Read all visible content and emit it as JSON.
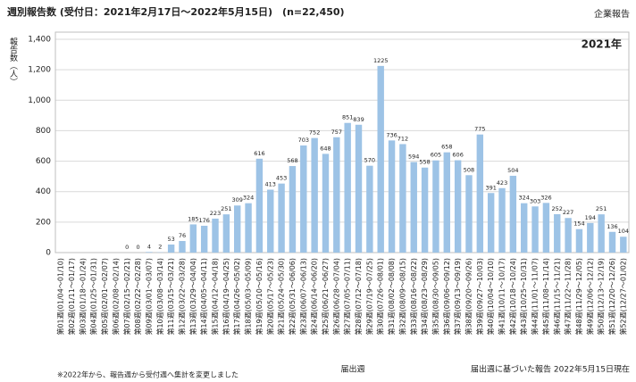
{
  "chart_data": {
    "type": "bar",
    "title": "週別報告数 (受付日：2021年2月17日～2022年5月15日)　(n=22,450)",
    "corner_label": "企業報告",
    "inset_label": "2021年",
    "y_label": "報告数（人）",
    "x_label": "届出週",
    "footnote": "※2022年から、報告週から受付週へ集計を変更しました",
    "source_note": "届出週に基づいた報告 2022年5月15日現在",
    "categories": [
      "第01週(01/04～01/10)",
      "第02週(01/11～01/17)",
      "第03週(01/18～01/24)",
      "第04週(01/25～01/31)",
      "第05週(02/01～02/07)",
      "第06週(02/08～02/14)",
      "第07週(02/15～02/21)",
      "第08週(02/22～02/28)",
      "第09週(03/01～03/07)",
      "第10週(03/08～03/14)",
      "第11週(03/15～03/21)",
      "第12週(03/22～03/28)",
      "第13週(03/29～04/04)",
      "第14週(04/05～04/11)",
      "第15週(04/12～04/18)",
      "第16週(04/19～04/25)",
      "第17週(04/26～05/02)",
      "第18週(05/03～05/09)",
      "第19週(05/10～05/16)",
      "第20週(05/17～05/23)",
      "第21週(05/24～05/30)",
      "第22週(05/31～06/06)",
      "第23週(06/07～06/13)",
      "第24週(06/14～06/20)",
      "第25週(06/21～06/27)",
      "第26週(06/28～07/04)",
      "第27週(07/05～07/11)",
      "第28週(07/12～07/18)",
      "第29週(07/19～07/25)",
      "第30週(07/26～08/01)",
      "第31週(08/02～08/08)",
      "第32週(08/09～08/15)",
      "第33週(08/16～08/22)",
      "第34週(08/23～08/29)",
      "第35週(08/30～09/05)",
      "第36週(09/06～09/12)",
      "第37週(09/13～09/19)",
      "第38週(09/20～09/26)",
      "第39週(09/27～10/03)",
      "第40週(10/04～10/10)",
      "第41週(10/11～10/17)",
      "第42週(10/18～10/24)",
      "第43週(10/25～10/31)",
      "第44週(11/01～11/07)",
      "第45週(11/08～11/14)",
      "第46週(11/15～11/21)",
      "第47週(11/22～11/28)",
      "第48週(11/29～12/05)",
      "第49週(12/06～12/12)",
      "第50週(12/13～12/19)",
      "第51週(12/20～12/26)",
      "第52週(12/27～01/02)"
    ],
    "values": [
      null,
      null,
      null,
      null,
      null,
      null,
      0,
      0,
      4,
      2,
      53,
      76,
      185,
      176,
      223,
      251,
      309,
      324,
      616,
      413,
      453,
      568,
      703,
      752,
      648,
      757,
      851,
      839,
      570,
      1225,
      736,
      712,
      594,
      558,
      605,
      658,
      606,
      508,
      775,
      391,
      423,
      504,
      324,
      303,
      326,
      252,
      227,
      154,
      194,
      251,
      136,
      104
    ],
    "color": "#9dc3e6",
    "ylim": [
      0,
      1400
    ],
    "yticks": [
      0,
      200,
      400,
      600,
      800,
      {
        "value": 1000,
        "label": "1,000"
      },
      {
        "value": 1200,
        "label": "1,200"
      },
      {
        "value": 1400,
        "label": "1,400"
      }
    ],
    "grid": true
  }
}
